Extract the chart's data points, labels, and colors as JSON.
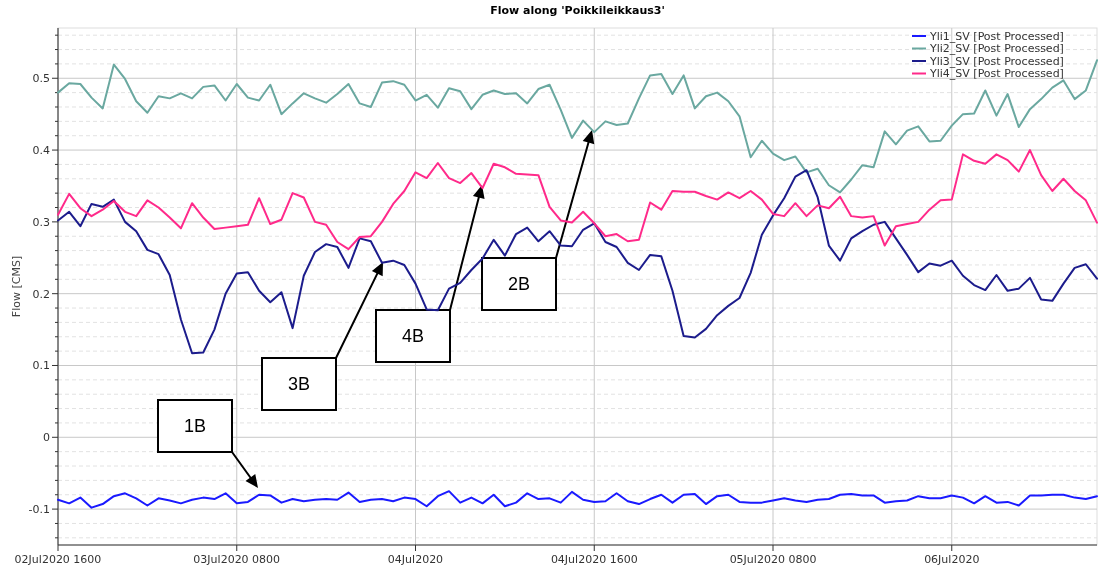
{
  "chart_data": {
    "type": "line",
    "title": "Flow along 'Poikkileikkaus3'",
    "ylabel": "Flow [CMS]",
    "x": [
      "2020-07-02T16:00",
      "2020-07-02T17:00",
      "2020-07-02T18:00",
      "2020-07-02T19:00",
      "2020-07-02T20:00",
      "2020-07-02T21:00",
      "2020-07-02T22:00",
      "2020-07-02T23:00",
      "2020-07-03T00:00",
      "2020-07-03T01:00",
      "2020-07-03T02:00",
      "2020-07-03T03:00",
      "2020-07-03T04:00",
      "2020-07-03T05:00",
      "2020-07-03T06:00",
      "2020-07-03T07:00",
      "2020-07-03T08:00",
      "2020-07-03T09:00",
      "2020-07-03T10:00",
      "2020-07-03T11:00",
      "2020-07-03T12:00",
      "2020-07-03T13:00",
      "2020-07-03T14:00",
      "2020-07-03T15:00",
      "2020-07-03T16:00",
      "2020-07-03T17:00",
      "2020-07-03T18:00",
      "2020-07-03T19:00",
      "2020-07-03T20:00",
      "2020-07-03T21:00",
      "2020-07-03T22:00",
      "2020-07-03T23:00",
      "2020-07-04T00:00",
      "2020-07-04T01:00",
      "2020-07-04T02:00",
      "2020-07-04T03:00",
      "2020-07-04T04:00",
      "2020-07-04T05:00",
      "2020-07-04T06:00",
      "2020-07-04T07:00",
      "2020-07-04T08:00",
      "2020-07-04T09:00",
      "2020-07-04T10:00",
      "2020-07-04T11:00",
      "2020-07-04T12:00",
      "2020-07-04T13:00",
      "2020-07-04T14:00",
      "2020-07-04T15:00",
      "2020-07-04T16:00",
      "2020-07-04T17:00",
      "2020-07-04T18:00",
      "2020-07-04T19:00",
      "2020-07-04T20:00",
      "2020-07-04T21:00",
      "2020-07-04T22:00",
      "2020-07-04T23:00",
      "2020-07-05T00:00",
      "2020-07-05T01:00",
      "2020-07-05T02:00",
      "2020-07-05T03:00",
      "2020-07-05T04:00",
      "2020-07-05T05:00",
      "2020-07-05T06:00",
      "2020-07-05T07:00",
      "2020-07-05T08:00",
      "2020-07-05T09:00",
      "2020-07-05T10:00",
      "2020-07-05T11:00",
      "2020-07-05T12:00",
      "2020-07-05T13:00",
      "2020-07-05T14:00",
      "2020-07-05T15:00",
      "2020-07-05T16:00",
      "2020-07-05T17:00",
      "2020-07-05T18:00",
      "2020-07-05T19:00",
      "2020-07-05T20:00",
      "2020-07-05T21:00",
      "2020-07-05T22:00",
      "2020-07-05T23:00",
      "2020-07-06T00:00",
      "2020-07-06T01:00",
      "2020-07-06T02:00",
      "2020-07-06T03:00",
      "2020-07-06T04:00",
      "2020-07-06T05:00",
      "2020-07-06T06:00",
      "2020-07-06T07:00",
      "2020-07-06T08:00",
      "2020-07-06T09:00",
      "2020-07-06T10:00",
      "2020-07-06T11:00",
      "2020-07-06T12:00",
      "2020-07-06T13:00"
    ],
    "series": [
      {
        "name": "Yli1_SV [Post Processed]",
        "color": "#1a1aff",
        "values": [
          -0.087,
          -0.092,
          -0.084,
          -0.098,
          -0.093,
          -0.082,
          -0.078,
          -0.085,
          -0.095,
          -0.085,
          -0.088,
          -0.092,
          -0.087,
          -0.084,
          -0.086,
          -0.078,
          -0.092,
          -0.09,
          -0.08,
          -0.081,
          -0.091,
          -0.086,
          -0.089,
          -0.087,
          -0.086,
          -0.087,
          -0.077,
          -0.09,
          -0.087,
          -0.086,
          -0.089,
          -0.084,
          -0.086,
          -0.096,
          -0.082,
          -0.075,
          -0.091,
          -0.084,
          -0.092,
          -0.08,
          -0.096,
          -0.091,
          -0.078,
          -0.086,
          -0.085,
          -0.091,
          -0.076,
          -0.087,
          -0.09,
          -0.089,
          -0.078,
          -0.089,
          -0.093,
          -0.086,
          -0.08,
          -0.091,
          -0.08,
          -0.079,
          -0.093,
          -0.082,
          -0.08,
          -0.09,
          -0.091,
          -0.091,
          -0.088,
          -0.085,
          -0.088,
          -0.09,
          -0.087,
          -0.086,
          -0.08,
          -0.079,
          -0.081,
          -0.081,
          -0.091,
          -0.089,
          -0.088,
          -0.082,
          -0.085,
          -0.085,
          -0.081,
          -0.084,
          -0.092,
          -0.082,
          -0.091,
          -0.09,
          -0.095,
          -0.081,
          -0.081,
          -0.08,
          -0.08,
          -0.084,
          -0.086,
          -0.082
        ]
      },
      {
        "name": "Yli2_SV [Post Processed]",
        "color": "#6aa8a0",
        "values": [
          0.48,
          0.493,
          0.492,
          0.473,
          0.458,
          0.519,
          0.499,
          0.468,
          0.452,
          0.475,
          0.472,
          0.479,
          0.472,
          0.488,
          0.49,
          0.469,
          0.492,
          0.473,
          0.469,
          0.491,
          0.45,
          0.465,
          0.479,
          0.472,
          0.466,
          0.478,
          0.492,
          0.465,
          0.46,
          0.494,
          0.496,
          0.491,
          0.469,
          0.477,
          0.459,
          0.486,
          0.482,
          0.457,
          0.477,
          0.483,
          0.478,
          0.479,
          0.465,
          0.485,
          0.491,
          0.456,
          0.417,
          0.441,
          0.425,
          0.44,
          0.435,
          0.437,
          0.472,
          0.504,
          0.506,
          0.478,
          0.504,
          0.458,
          0.475,
          0.48,
          0.468,
          0.447,
          0.39,
          0.413,
          0.395,
          0.386,
          0.391,
          0.369,
          0.374,
          0.351,
          0.341,
          0.359,
          0.379,
          0.376,
          0.426,
          0.408,
          0.427,
          0.433,
          0.412,
          0.413,
          0.434,
          0.45,
          0.451,
          0.483,
          0.448,
          0.478,
          0.432,
          0.457,
          0.471,
          0.487,
          0.497,
          0.471,
          0.483,
          0.525
        ]
      },
      {
        "name": "Yli3_SV [Post Processed]",
        "color": "#1c1c8c",
        "values": [
          0.302,
          0.314,
          0.294,
          0.325,
          0.321,
          0.331,
          0.3,
          0.287,
          0.261,
          0.255,
          0.226,
          0.164,
          0.117,
          0.118,
          0.15,
          0.2,
          0.228,
          0.23,
          0.204,
          0.188,
          0.202,
          0.152,
          0.225,
          0.258,
          0.269,
          0.265,
          0.236,
          0.277,
          0.273,
          0.243,
          0.246,
          0.24,
          0.214,
          0.178,
          0.177,
          0.207,
          0.215,
          0.233,
          0.249,
          0.275,
          0.253,
          0.283,
          0.292,
          0.273,
          0.287,
          0.267,
          0.266,
          0.289,
          0.298,
          0.272,
          0.265,
          0.243,
          0.233,
          0.254,
          0.252,
          0.204,
          0.141,
          0.139,
          0.151,
          0.17,
          0.183,
          0.194,
          0.229,
          0.282,
          0.309,
          0.333,
          0.363,
          0.372,
          0.334,
          0.267,
          0.246,
          0.277,
          0.287,
          0.296,
          0.3,
          0.277,
          0.254,
          0.23,
          0.242,
          0.239,
          0.246,
          0.225,
          0.212,
          0.205,
          0.226,
          0.204,
          0.207,
          0.222,
          0.192,
          0.19,
          0.214,
          0.236,
          0.241,
          0.221
        ]
      },
      {
        "name": "Yli4_SV [Post Processed]",
        "color": "#ff2a8a",
        "values": [
          0.31,
          0.339,
          0.319,
          0.308,
          0.317,
          0.329,
          0.314,
          0.308,
          0.33,
          0.32,
          0.306,
          0.291,
          0.326,
          0.306,
          0.29,
          0.292,
          0.294,
          0.296,
          0.333,
          0.297,
          0.303,
          0.34,
          0.334,
          0.3,
          0.296,
          0.272,
          0.262,
          0.279,
          0.28,
          0.3,
          0.325,
          0.343,
          0.369,
          0.361,
          0.382,
          0.361,
          0.354,
          0.368,
          0.347,
          0.381,
          0.376,
          0.367,
          0.366,
          0.365,
          0.321,
          0.302,
          0.299,
          0.314,
          0.298,
          0.28,
          0.283,
          0.273,
          0.275,
          0.327,
          0.317,
          0.343,
          0.342,
          0.342,
          0.336,
          0.331,
          0.341,
          0.333,
          0.343,
          0.331,
          0.311,
          0.308,
          0.326,
          0.308,
          0.323,
          0.319,
          0.335,
          0.308,
          0.306,
          0.308,
          0.267,
          0.294,
          0.297,
          0.3,
          0.317,
          0.33,
          0.331,
          0.394,
          0.385,
          0.381,
          0.394,
          0.386,
          0.37,
          0.4,
          0.365,
          0.343,
          0.36,
          0.343,
          0.33,
          0.299
        ]
      }
    ],
    "xlim": [
      "2020-07-02T16:00",
      "2020-07-06T13:00"
    ],
    "xticks": [
      {
        "value": "2020-07-02T16:00",
        "label": "02Jul2020 1600"
      },
      {
        "value": "2020-07-03T08:00",
        "label": "03Jul2020 0800"
      },
      {
        "value": "2020-07-04T00:00",
        "label": "04Jul2020"
      },
      {
        "value": "2020-07-04T16:00",
        "label": "04Jul2020 1600"
      },
      {
        "value": "2020-07-05T08:00",
        "label": "05Jul2020 0800"
      },
      {
        "value": "2020-07-06T00:00",
        "label": "06Jul2020"
      }
    ],
    "ylim": [
      -0.15,
      0.57
    ],
    "yticks": [
      {
        "value": -0.14,
        "label": null
      },
      {
        "value": -0.12,
        "label": null
      },
      -0.1,
      {
        "value": -0.08,
        "label": null
      },
      {
        "value": -0.06,
        "label": null
      },
      {
        "value": -0.04,
        "label": null
      },
      {
        "value": -0.02,
        "label": null
      },
      0,
      {
        "value": 0.02,
        "label": null
      },
      {
        "value": 0.04,
        "label": null
      },
      {
        "value": 0.06,
        "label": null
      },
      {
        "value": 0.08,
        "label": null
      },
      0.1,
      {
        "value": 0.12,
        "label": null
      },
      {
        "value": 0.14,
        "label": null
      },
      {
        "value": 0.16,
        "label": null
      },
      {
        "value": 0.18,
        "label": null
      },
      0.2,
      {
        "value": 0.22,
        "label": null
      },
      {
        "value": 0.24,
        "label": null
      },
      {
        "value": 0.26,
        "label": null
      },
      {
        "value": 0.28,
        "label": null
      },
      0.3,
      {
        "value": 0.32,
        "label": null
      },
      {
        "value": 0.34,
        "label": null
      },
      {
        "value": 0.36,
        "label": null
      },
      {
        "value": 0.38,
        "label": null
      },
      0.4,
      {
        "value": 0.42,
        "label": null
      },
      {
        "value": 0.44,
        "label": null
      },
      {
        "value": 0.46,
        "label": null
      },
      {
        "value": 0.48,
        "label": null
      },
      0.5,
      {
        "value": 0.52,
        "label": null
      },
      {
        "value": 0.54,
        "label": null
      },
      {
        "value": 0.56,
        "label": null
      }
    ],
    "annotations": [
      "1B",
      "3B",
      "4B",
      "2B"
    ],
    "grid": true,
    "legend": "top right",
    "line_style": "solid"
  }
}
